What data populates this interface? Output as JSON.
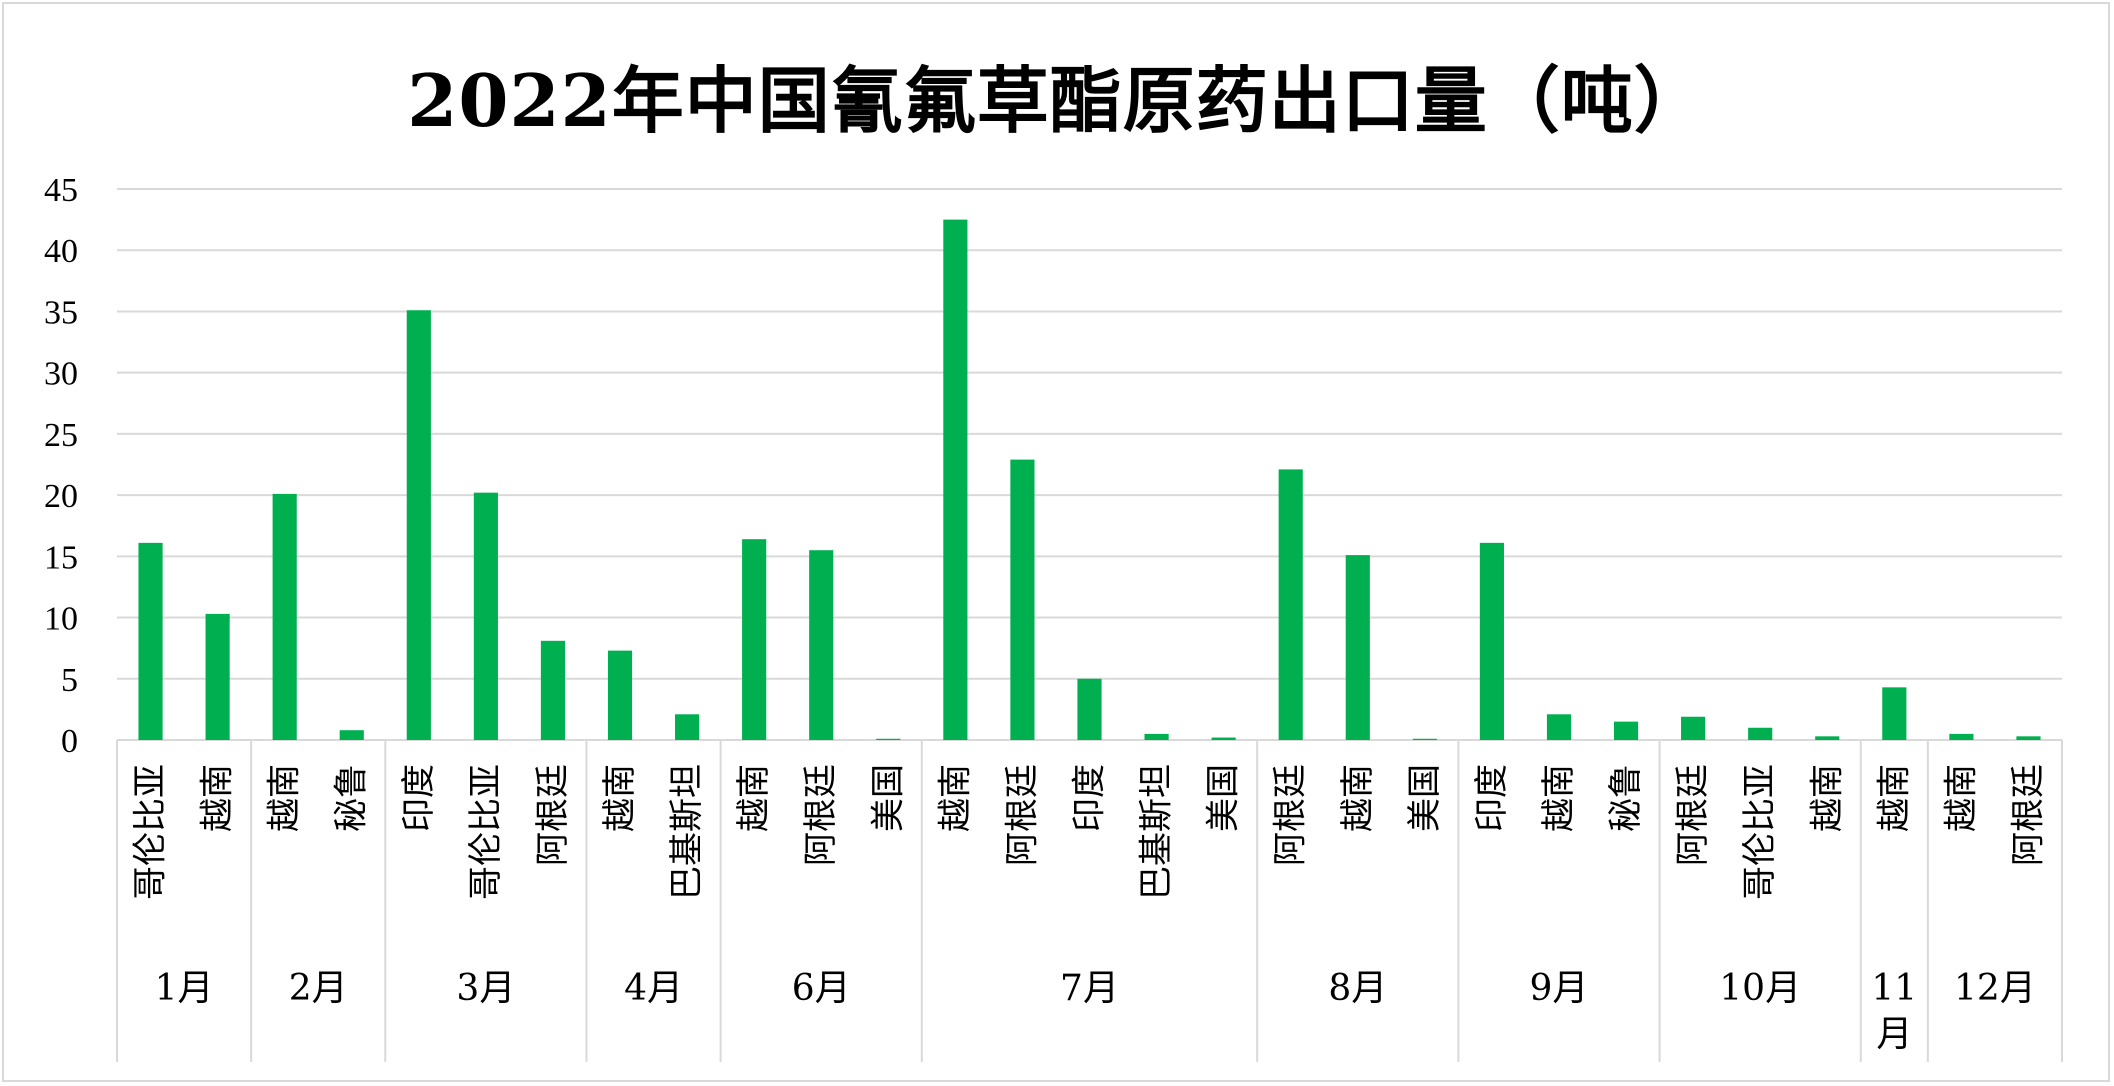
{
  "chart_data": {
    "type": "bar",
    "title": "2022年中国氰氟草酯原药出口量（吨）",
    "xlabel": "",
    "ylabel": "",
    "ylim": [
      0,
      45
    ],
    "yticks": [
      0,
      5,
      10,
      15,
      20,
      25,
      30,
      35,
      40,
      45
    ],
    "grid": true,
    "legend": "none",
    "bar_color": "#00b050",
    "groups": [
      {
        "month": "1月",
        "categories": [
          "哥伦比亚",
          "越南"
        ],
        "values": [
          16.1,
          10.3
        ]
      },
      {
        "month": "2月",
        "categories": [
          "越南",
          "秘鲁"
        ],
        "values": [
          20.1,
          0.8
        ]
      },
      {
        "month": "3月",
        "categories": [
          "印度",
          "哥伦比亚",
          "阿根廷"
        ],
        "values": [
          35.1,
          20.2,
          8.1
        ]
      },
      {
        "month": "4月",
        "categories": [
          "越南",
          "巴基斯坦"
        ],
        "values": [
          7.3,
          2.1
        ]
      },
      {
        "month": "6月",
        "categories": [
          "越南",
          "阿根廷",
          "美国"
        ],
        "values": [
          16.4,
          15.5,
          0.1
        ]
      },
      {
        "month": "7月",
        "categories": [
          "越南",
          "阿根廷",
          "印度",
          "巴基斯坦",
          "美国"
        ],
        "values": [
          42.5,
          22.9,
          5.0,
          0.5,
          0.2
        ]
      },
      {
        "month": "8月",
        "categories": [
          "阿根廷",
          "越南",
          "美国"
        ],
        "values": [
          22.1,
          15.1,
          0.1
        ]
      },
      {
        "month": "9月",
        "categories": [
          "印度",
          "越南",
          "秘鲁"
        ],
        "values": [
          16.1,
          2.1,
          1.5
        ]
      },
      {
        "month": "10月",
        "categories": [
          "阿根廷",
          "哥伦比亚",
          "越南"
        ],
        "values": [
          1.9,
          1.0,
          0.3
        ]
      },
      {
        "month": "11月",
        "categories": [
          "越南"
        ],
        "values": [
          4.3
        ]
      },
      {
        "month": "12月",
        "categories": [
          "越南",
          "阿根廷"
        ],
        "values": [
          0.5,
          0.3
        ]
      }
    ]
  }
}
